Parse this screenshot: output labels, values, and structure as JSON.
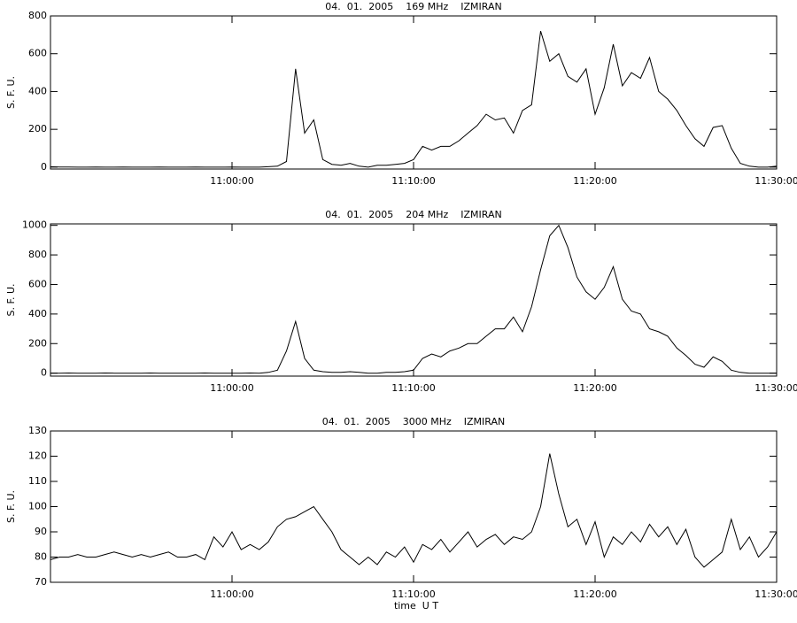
{
  "chart_data": [
    {
      "type": "line",
      "title": "04.  01.  2005    169 MHz    IZMIRAN",
      "y_label": "S. F. U.",
      "color": "#000000",
      "xlim": [
        "10:50:00",
        "11:30:00"
      ],
      "xticks": [
        "11:00:00",
        "11:10:00",
        "11:20:00",
        "11:30:00"
      ],
      "ylim": [
        -10,
        800
      ],
      "yticks": [
        0,
        200,
        400,
        600,
        800
      ],
      "x": [
        "10:50:00",
        "10:50:30",
        "10:51:00",
        "10:51:30",
        "10:52:00",
        "10:52:30",
        "10:53:00",
        "10:53:30",
        "10:54:00",
        "10:54:30",
        "10:55:00",
        "10:55:30",
        "10:56:00",
        "10:56:30",
        "10:57:00",
        "10:57:30",
        "10:58:00",
        "10:58:30",
        "10:59:00",
        "10:59:30",
        "11:00:00",
        "11:00:30",
        "11:01:00",
        "11:01:30",
        "11:02:00",
        "11:02:30",
        "11:03:00",
        "11:03:30",
        "11:04:00",
        "11:04:30",
        "11:05:00",
        "11:05:30",
        "11:06:00",
        "11:06:30",
        "11:07:00",
        "11:07:30",
        "11:08:00",
        "11:08:30",
        "11:09:00",
        "11:09:30",
        "11:10:00",
        "11:10:30",
        "11:11:00",
        "11:11:30",
        "11:12:00",
        "11:12:30",
        "11:13:00",
        "11:13:30",
        "11:14:00",
        "11:14:30",
        "11:15:00",
        "11:15:30",
        "11:16:00",
        "11:16:30",
        "11:17:00",
        "11:17:30",
        "11:18:00",
        "11:18:30",
        "11:19:00",
        "11:19:30",
        "11:20:00",
        "11:20:30",
        "11:21:00",
        "11:21:30",
        "11:22:00",
        "11:22:30",
        "11:23:00",
        "11:23:30",
        "11:24:00",
        "11:24:30",
        "11:25:00",
        "11:25:30",
        "11:26:00",
        "11:26:30",
        "11:27:00",
        "11:27:30",
        "11:28:00",
        "11:28:30",
        "11:29:00",
        "11:29:30",
        "11:30:00"
      ],
      "values": [
        2,
        1,
        1,
        0,
        0,
        1,
        0,
        0,
        1,
        0,
        0,
        0,
        1,
        0,
        0,
        0,
        1,
        0,
        0,
        0,
        1,
        0,
        0,
        0,
        2,
        5,
        30,
        520,
        180,
        250,
        40,
        15,
        10,
        20,
        5,
        0,
        10,
        10,
        15,
        20,
        40,
        110,
        90,
        110,
        110,
        140,
        180,
        220,
        280,
        250,
        260,
        180,
        300,
        330,
        720,
        560,
        600,
        480,
        450,
        520,
        280,
        420,
        650,
        430,
        500,
        470,
        580,
        400,
        360,
        300,
        220,
        150,
        110,
        210,
        220,
        100,
        20,
        5,
        0,
        0,
        5
      ]
    },
    {
      "type": "line",
      "title": "04.  01.  2005    204 MHz    IZMIRAN",
      "y_label": "S. F. U.",
      "color": "#000000",
      "xlim": [
        "10:50:00",
        "11:30:00"
      ],
      "xticks": [
        "11:00:00",
        "11:10:00",
        "11:20:00",
        "11:30:00"
      ],
      "ylim": [
        -20,
        1010
      ],
      "yticks": [
        0,
        200,
        400,
        600,
        800,
        1000
      ],
      "x": [
        "10:50:00",
        "10:50:30",
        "10:51:00",
        "10:51:30",
        "10:52:00",
        "10:52:30",
        "10:53:00",
        "10:53:30",
        "10:54:00",
        "10:54:30",
        "10:55:00",
        "10:55:30",
        "10:56:00",
        "10:56:30",
        "10:57:00",
        "10:57:30",
        "10:58:00",
        "10:58:30",
        "10:59:00",
        "10:59:30",
        "11:00:00",
        "11:00:30",
        "11:01:00",
        "11:01:30",
        "11:02:00",
        "11:02:30",
        "11:03:00",
        "11:03:30",
        "11:04:00",
        "11:04:30",
        "11:05:00",
        "11:05:30",
        "11:06:00",
        "11:06:30",
        "11:07:00",
        "11:07:30",
        "11:08:00",
        "11:08:30",
        "11:09:00",
        "11:09:30",
        "11:10:00",
        "11:10:30",
        "11:11:00",
        "11:11:30",
        "11:12:00",
        "11:12:30",
        "11:13:00",
        "11:13:30",
        "11:14:00",
        "11:14:30",
        "11:15:00",
        "11:15:30",
        "11:16:00",
        "11:16:30",
        "11:17:00",
        "11:17:30",
        "11:18:00",
        "11:18:30",
        "11:19:00",
        "11:19:30",
        "11:20:00",
        "11:20:30",
        "11:21:00",
        "11:21:30",
        "11:22:00",
        "11:22:30",
        "11:23:00",
        "11:23:30",
        "11:24:00",
        "11:24:30",
        "11:25:00",
        "11:25:30",
        "11:26:00",
        "11:26:30",
        "11:27:00",
        "11:27:30",
        "11:28:00",
        "11:28:30",
        "11:29:00",
        "11:29:30",
        "11:30:00"
      ],
      "values": [
        0,
        0,
        1,
        0,
        0,
        0,
        1,
        0,
        0,
        0,
        0,
        1,
        0,
        0,
        0,
        0,
        0,
        1,
        0,
        0,
        0,
        0,
        1,
        0,
        5,
        20,
        150,
        350,
        100,
        20,
        10,
        5,
        5,
        10,
        5,
        0,
        0,
        5,
        5,
        10,
        20,
        100,
        130,
        110,
        150,
        170,
        200,
        200,
        250,
        300,
        300,
        380,
        280,
        450,
        700,
        930,
        1000,
        850,
        650,
        550,
        500,
        580,
        720,
        500,
        420,
        400,
        300,
        280,
        250,
        170,
        120,
        60,
        40,
        110,
        80,
        20,
        5,
        0,
        0,
        0,
        0
      ]
    },
    {
      "type": "line",
      "title": "04.  01.  2005    3000 MHz    IZMIRAN",
      "y_label": "S. F. U.",
      "x_label": "time  U T",
      "color": "#000000",
      "xlim": [
        "10:50:00",
        "11:30:00"
      ],
      "xticks": [
        "11:00:00",
        "11:10:00",
        "11:20:00",
        "11:30:00"
      ],
      "ylim": [
        70,
        130
      ],
      "yticks": [
        70,
        80,
        90,
        100,
        110,
        120,
        130
      ],
      "x": [
        "10:50:00",
        "10:50:30",
        "10:51:00",
        "10:51:30",
        "10:52:00",
        "10:52:30",
        "10:53:00",
        "10:53:30",
        "10:54:00",
        "10:54:30",
        "10:55:00",
        "10:55:30",
        "10:56:00",
        "10:56:30",
        "10:57:00",
        "10:57:30",
        "10:58:00",
        "10:58:30",
        "10:59:00",
        "10:59:30",
        "11:00:00",
        "11:00:30",
        "11:01:00",
        "11:01:30",
        "11:02:00",
        "11:02:30",
        "11:03:00",
        "11:03:30",
        "11:04:00",
        "11:04:30",
        "11:05:00",
        "11:05:30",
        "11:06:00",
        "11:06:30",
        "11:07:00",
        "11:07:30",
        "11:08:00",
        "11:08:30",
        "11:09:00",
        "11:09:30",
        "11:10:00",
        "11:10:30",
        "11:11:00",
        "11:11:30",
        "11:12:00",
        "11:12:30",
        "11:13:00",
        "11:13:30",
        "11:14:00",
        "11:14:30",
        "11:15:00",
        "11:15:30",
        "11:16:00",
        "11:16:30",
        "11:17:00",
        "11:17:30",
        "11:18:00",
        "11:18:30",
        "11:19:00",
        "11:19:30",
        "11:20:00",
        "11:20:30",
        "11:21:00",
        "11:21:30",
        "11:22:00",
        "11:22:30",
        "11:23:00",
        "11:23:30",
        "11:24:00",
        "11:24:30",
        "11:25:00",
        "11:25:30",
        "11:26:00",
        "11:26:30",
        "11:27:00",
        "11:27:30",
        "11:28:00",
        "11:28:30",
        "11:29:00",
        "11:29:30",
        "11:30:00"
      ],
      "values": [
        79,
        80,
        80,
        81,
        80,
        80,
        81,
        82,
        81,
        80,
        81,
        80,
        81,
        82,
        80,
        80,
        81,
        79,
        88,
        84,
        90,
        83,
        85,
        83,
        86,
        92,
        95,
        96,
        98,
        100,
        95,
        90,
        83,
        80,
        77,
        80,
        77,
        82,
        80,
        84,
        78,
        85,
        83,
        87,
        82,
        86,
        90,
        84,
        87,
        89,
        85,
        88,
        87,
        90,
        100,
        121,
        105,
        92,
        95,
        85,
        94,
        80,
        88,
        85,
        90,
        86,
        93,
        88,
        92,
        85,
        91,
        80,
        76,
        79,
        82,
        95,
        83,
        88,
        80,
        84,
        90
      ]
    }
  ]
}
